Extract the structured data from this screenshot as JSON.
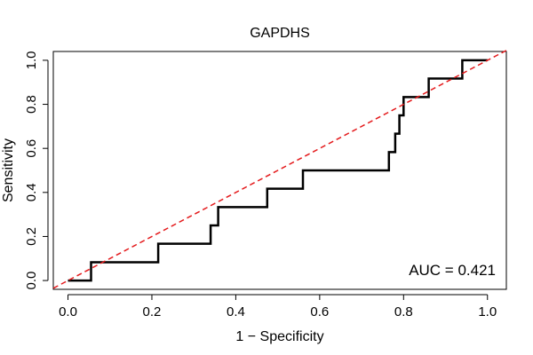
{
  "chart_data": {
    "type": "line",
    "title": "GAPDHS",
    "xlabel": "1 − Specificity",
    "ylabel": "Sensitivity",
    "xlim": [
      -0.035,
      1.045
    ],
    "ylim": [
      -0.04,
      1.04
    ],
    "xticks": [
      {
        "value": 0.0,
        "label": "0.0"
      },
      {
        "value": 0.2,
        "label": "0.2"
      },
      {
        "value": 0.4,
        "label": "0.4"
      },
      {
        "value": 0.6,
        "label": "0.6"
      },
      {
        "value": 0.8,
        "label": "0.8"
      },
      {
        "value": 1.0,
        "label": "1.0"
      }
    ],
    "yticks": [
      {
        "value": 0.0,
        "label": "0.0"
      },
      {
        "value": 0.2,
        "label": "0.2"
      },
      {
        "value": 0.4,
        "label": "0.4"
      },
      {
        "value": 0.6,
        "label": "0.6"
      },
      {
        "value": 0.8,
        "label": "0.8"
      },
      {
        "value": 1.0,
        "label": "1.0"
      }
    ],
    "grid": false,
    "series": [
      {
        "color": "#000000",
        "style": "step",
        "x": [
          0.0,
          0.055,
          0.055,
          0.215,
          0.215,
          0.34,
          0.34,
          0.358,
          0.358,
          0.475,
          0.475,
          0.56,
          0.56,
          0.765,
          0.765,
          0.78,
          0.78,
          0.79,
          0.79,
          0.8,
          0.8,
          0.86,
          0.86,
          0.94,
          0.94,
          1.0
        ],
        "y": [
          0.0,
          0.0,
          0.083,
          0.083,
          0.167,
          0.167,
          0.25,
          0.25,
          0.333,
          0.333,
          0.417,
          0.417,
          0.5,
          0.5,
          0.583,
          0.583,
          0.667,
          0.667,
          0.75,
          0.75,
          0.833,
          0.833,
          0.917,
          0.917,
          1.0,
          1.0
        ]
      },
      {
        "color": "#e41a1c",
        "style": "dashed",
        "x": [
          -0.035,
          1.045
        ],
        "y": [
          -0.035,
          1.045
        ]
      }
    ],
    "annotations": [
      {
        "text": "AUC = 0.421",
        "position": "bottom-right"
      }
    ]
  }
}
